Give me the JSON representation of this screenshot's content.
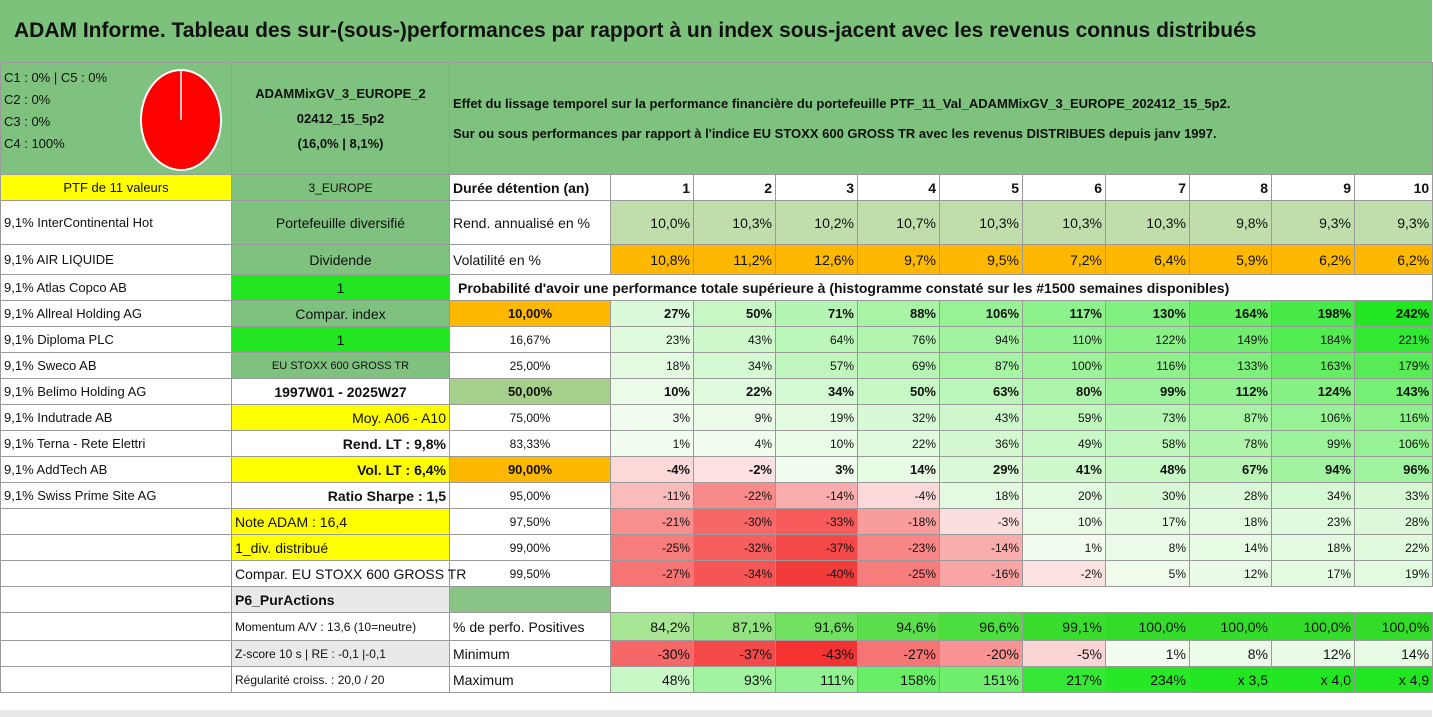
{
  "title": "ADAM Informe. Tableau des sur-(sous-)performances par rapport à un index sous-jacent avec les revenus connus distribués",
  "classes": [
    "C1 : 0% | C5 : 0%",
    "C2 : 0%",
    "C3 : 0%",
    "C4 : 100%"
  ],
  "pie_color": "#ff0000",
  "portfolio": {
    "name_line1": "ADAMMixGV_3_EUROPE_2",
    "name_line2": "02412_15_5p2",
    "name_line3": "(16,0% | 8,1%)"
  },
  "description": {
    "line1": "Effet du lissage temporel sur la performance financière du portefeuille PTF_11_Val_ADAMMixGV_3_EUROPE_202412_15_5p2.",
    "line2": "Sur ou sous performances par rapport à l'indice EU STOXX 600 GROSS TR avec les revenus DISTRIBUES depuis janv 1997."
  },
  "left_labels": {
    "ptf": "PTF de 11 valeurs",
    "zone": "3_EUROPE",
    "type": "Portefeuille diversifié",
    "dividende": "Dividende",
    "one_a": "1",
    "compar_index": "Compar. index",
    "one_b": "1",
    "index_name": "EU STOXX 600 GROSS TR",
    "period": "1997W01 - 2025W27",
    "moy": "Moy. A06 - A10",
    "rend_lt": "Rend. LT : 9,8%",
    "vol_lt": "Vol. LT : 6,4%",
    "sharpe": "Ratio Sharpe : 1,5",
    "note": "Note ADAM : 16,4",
    "div": "1_div. distribué",
    "compar": "Compar. EU STOXX 600 GROSS TR",
    "p6": "P6_PurActions",
    "momentum": "Momentum A/V : 13,6 (10=neutre)",
    "zscore": "Z-score 10 s | RE : -0,1 |-0,1",
    "regularite": "Régularité croiss. : 20,0 / 20"
  },
  "holdings": [
    "9,1% InterContinental Hot",
    "9,1% AIR LIQUIDE",
    "9,1% Atlas Copco AB",
    "9,1% Allreal Holding AG",
    "9,1% Diploma PLC",
    "9,1% Sweco AB",
    "9,1% Belimo Holding AG",
    "9,1% Indutrade AB",
    "9,1% Terna - Rete Elettri",
    "9,1% AddTech AB",
    "9,1% Swiss Prime Site AG"
  ],
  "stats": {
    "duration_label": "Durée détention (an)",
    "years": [
      "1",
      "2",
      "3",
      "4",
      "5",
      "6",
      "7",
      "8",
      "9",
      "10"
    ],
    "rend_label": "Rend. annualisé en %",
    "rend": [
      "10,0%",
      "10,3%",
      "10,2%",
      "10,7%",
      "10,3%",
      "10,3%",
      "10,3%",
      "9,8%",
      "9,3%",
      "9,3%"
    ],
    "vol_label": "Volatilité en %",
    "vol": [
      "10,8%",
      "11,2%",
      "12,6%",
      "9,7%",
      "9,5%",
      "7,2%",
      "6,4%",
      "5,9%",
      "6,2%",
      "6,2%"
    ],
    "prob_header": "Probabilité d'avoir une performance totale supérieure à (histogramme constaté sur les #1500 semaines disponibles)"
  },
  "prob_rows": [
    {
      "p": "10,00%",
      "v": [
        "27%",
        "50%",
        "71%",
        "88%",
        "106%",
        "117%",
        "130%",
        "164%",
        "198%",
        "242%"
      ]
    },
    {
      "p": "16,67%",
      "v": [
        "23%",
        "43%",
        "64%",
        "76%",
        "94%",
        "110%",
        "122%",
        "149%",
        "184%",
        "221%"
      ]
    },
    {
      "p": "25,00%",
      "v": [
        "18%",
        "34%",
        "57%",
        "69%",
        "87%",
        "100%",
        "116%",
        "133%",
        "163%",
        "179%"
      ]
    },
    {
      "p": "50,00%",
      "v": [
        "10%",
        "22%",
        "34%",
        "50%",
        "63%",
        "80%",
        "99%",
        "112%",
        "124%",
        "143%"
      ]
    },
    {
      "p": "75,00%",
      "v": [
        "3%",
        "9%",
        "19%",
        "32%",
        "43%",
        "59%",
        "73%",
        "87%",
        "106%",
        "116%"
      ]
    },
    {
      "p": "83,33%",
      "v": [
        "1%",
        "4%",
        "10%",
        "22%",
        "36%",
        "49%",
        "58%",
        "78%",
        "99%",
        "106%"
      ]
    },
    {
      "p": "90,00%",
      "v": [
        "-4%",
        "-2%",
        "3%",
        "14%",
        "29%",
        "41%",
        "48%",
        "67%",
        "94%",
        "96%"
      ]
    },
    {
      "p": "95,00%",
      "v": [
        "-11%",
        "-22%",
        "-14%",
        "-4%",
        "18%",
        "20%",
        "30%",
        "28%",
        "34%",
        "33%"
      ]
    },
    {
      "p": "97,50%",
      "v": [
        "-21%",
        "-30%",
        "-33%",
        "-18%",
        "-3%",
        "10%",
        "17%",
        "18%",
        "23%",
        "28%"
      ]
    },
    {
      "p": "99,00%",
      "v": [
        "-25%",
        "-32%",
        "-37%",
        "-23%",
        "-14%",
        "1%",
        "8%",
        "14%",
        "18%",
        "22%"
      ]
    },
    {
      "p": "99,50%",
      "v": [
        "-27%",
        "-34%",
        "-40%",
        "-25%",
        "-16%",
        "-2%",
        "5%",
        "12%",
        "17%",
        "19%"
      ]
    }
  ],
  "bottom": {
    "pos_label": "% de perfo. Positives",
    "pos": [
      "84,2%",
      "87,1%",
      "91,6%",
      "94,6%",
      "96,6%",
      "99,1%",
      "100,0%",
      "100,0%",
      "100,0%",
      "100,0%"
    ],
    "min_label": "Minimum",
    "min": [
      "-30%",
      "-37%",
      "-43%",
      "-27%",
      "-20%",
      "-5%",
      "1%",
      "8%",
      "12%",
      "14%"
    ],
    "max_label": "Maximum",
    "max": [
      "48%",
      "93%",
      "111%",
      "158%",
      "151%",
      "217%",
      "234%",
      "x 3,5",
      "x 4,0",
      "x 4,9"
    ]
  }
}
